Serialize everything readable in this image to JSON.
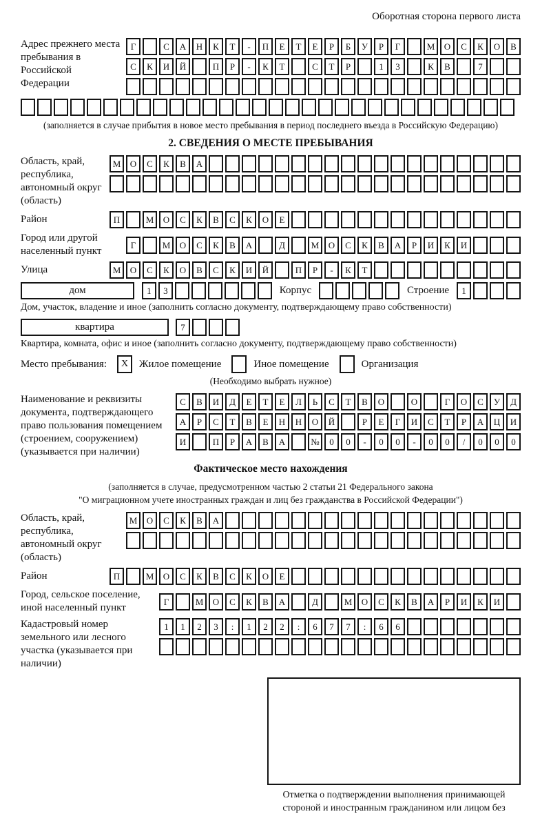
{
  "header_note": "Оборотная сторона первого листа",
  "prev_address": {
    "label": "Адрес прежнего места пребывания в Российской Федерации",
    "note": "(заполняется в случае прибытия в новое место пребывания в период последнего въезда в Российскую Федерацию)"
  },
  "section2": {
    "title": "2. СВЕДЕНИЯ О МЕСТЕ ПРЕБЫВАНИЯ",
    "region_label": "Область, край, республика, автономный округ (область)",
    "district_label": "Район",
    "city_label": "Город или другой населенный пункт",
    "street_label": "Улица",
    "house_box_label": "дом",
    "korpus_label": "Корпус",
    "stroenie_label": "Строение",
    "house_caption": "Дом, участок, владение и иное (заполнить согласно документу, подтверждающему право собственности)",
    "apartment_box_label": "квартира",
    "apartment_caption": "Квартира, комната, офис и иное (заполнить согласно документу, подтверждающему право собственности)",
    "stay_label": "Место пребывания:",
    "stay_options": [
      {
        "label": "Жилое помещение",
        "mark": "X"
      },
      {
        "label": "Иное помещение",
        "mark": ""
      },
      {
        "label": "Организация",
        "mark": ""
      }
    ],
    "stay_note": "(Необходимо выбрать нужное)",
    "doc_label": "Наименование и реквизиты документа, подтверждающего право пользования помещением (строением, сооружением) (указывается при наличии)"
  },
  "section3": {
    "title": "Фактическое место нахождения",
    "note_line1": "(заполняется в случае, предусмотренном частью 2 статьи 21 Федерального закона",
    "note_line2": "\"О миграционном учете иностранных граждан и лиц без гражданства в Российской Федерации\")",
    "region_label": "Область, край, республика, автономный округ (область)",
    "district_label": "Район",
    "city_label": "Город, сельское поселение, иной населенный пункт",
    "kadastr_label": "Кадастровый номер земельного или лесного участка (указывается при наличии)",
    "stamp_caption": "Отметка о подтверждении выполнения принимающей стороной и иностранным гражданином или лицом без гражданства действий, необходимых для его постановки на учет по месту пребывания"
  },
  "grids": {
    "prev1": {
      "count": 24,
      "text": "Г_САНКТ-ПЕТЕРБУРГ_МОСКОВ"
    },
    "prev2": {
      "count": 24,
      "text": "СКИЙ_ПР-КТ_СТР_13_КВ_7"
    },
    "prev3": {
      "count": 24,
      "text": ""
    },
    "prev4": {
      "count": 30,
      "text": ""
    },
    "region2a": {
      "count": 25,
      "text": "МОСКВА"
    },
    "region2b": {
      "count": 25,
      "text": ""
    },
    "district2": {
      "count": 25,
      "text": "П_МОСКВСКОЕ"
    },
    "city2": {
      "count": 24,
      "text": "Г_МОСКВА_Д_МОСКВАРИКИ"
    },
    "street2": {
      "count": 25,
      "text": "МОСКОВСКИЙ_ПР-КТ"
    },
    "house": {
      "count": 8,
      "text": "13"
    },
    "korpus": {
      "count": 5,
      "text": ""
    },
    "stroenie": {
      "count": 4,
      "text": "1"
    },
    "apartment": {
      "count": 4,
      "text": "7"
    },
    "doc1": {
      "count": 21,
      "text": "СВИДЕТЕЛЬСТВО_О_ГОСУД"
    },
    "doc2": {
      "count": 21,
      "text": "АРСТВЕННОЙ_РЕГИСТРАЦИ"
    },
    "doc3": {
      "count": 21,
      "text": "И_ПРАВА_№00-00-00/000"
    },
    "region3a": {
      "count": 24,
      "text": "МОСКВА"
    },
    "region3b": {
      "count": 24,
      "text": ""
    },
    "district3": {
      "count": 25,
      "text": "П_МОСКВСКОЕ"
    },
    "city3": {
      "count": 22,
      "text": "Г_МОСКВА_Д_МОСКВАРИКИ"
    },
    "kadastr1": {
      "count": 22,
      "text": "1123:122:677:66"
    },
    "kadastr2": {
      "count": 22,
      "text": ""
    }
  }
}
